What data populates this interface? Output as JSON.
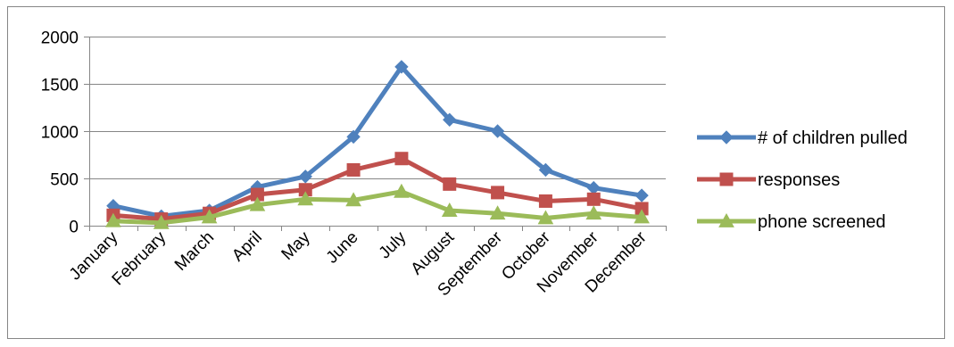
{
  "chart_data": {
    "type": "line",
    "categories": [
      "January",
      "February",
      "March",
      "April",
      "May",
      "June",
      "July",
      "August",
      "September",
      "October",
      "November",
      "December"
    ],
    "series": [
      {
        "name": "# of children pulled",
        "color": "#4F81BD",
        "marker": "diamond",
        "values": [
          210,
          100,
          160,
          410,
          520,
          940,
          1680,
          1120,
          1000,
          590,
          400,
          320
        ]
      },
      {
        "name": "responses",
        "color": "#C0504D",
        "marker": "square",
        "values": [
          110,
          70,
          130,
          330,
          380,
          590,
          710,
          440,
          350,
          260,
          280,
          180
        ]
      },
      {
        "name": "phone screened",
        "color": "#9BBB59",
        "marker": "triangle",
        "values": [
          50,
          30,
          90,
          220,
          280,
          270,
          360,
          160,
          130,
          80,
          130,
          90
        ]
      }
    ],
    "yticks": [
      0,
      500,
      1000,
      1500,
      2000
    ],
    "ylim": [
      0,
      2000
    ],
    "grid": true,
    "legend": "right",
    "title": "",
    "xlabel": "",
    "ylabel": ""
  }
}
